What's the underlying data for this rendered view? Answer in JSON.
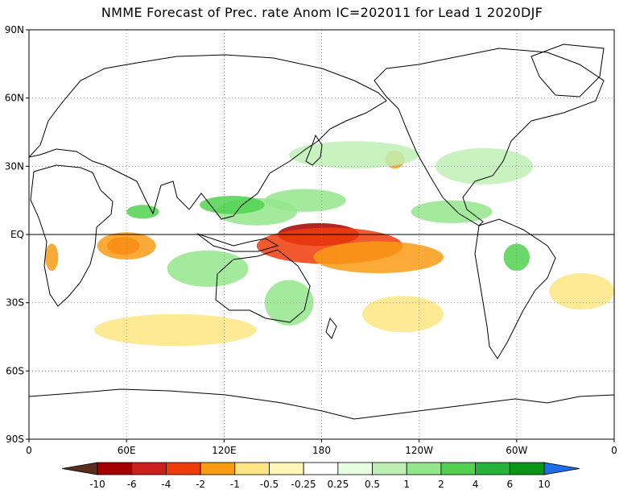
{
  "title": "NMME Forecast of Prec. rate Anom IC=202011 for Lead 1 2020DJF",
  "lat_labels": [
    "90N",
    "60N",
    "30N",
    "EQ",
    "30S",
    "60S",
    "90S"
  ],
  "lon_labels": [
    "0",
    "60E",
    "120E",
    "180",
    "120W",
    "60W",
    "0"
  ],
  "colorbar": {
    "colors": [
      "#5a2d1e",
      "#a50000",
      "#cd1e1e",
      "#f03c0a",
      "#fa9b14",
      "#fee682",
      "#fff5b4",
      "#ffffff",
      "#e6ffe1",
      "#bef0b4",
      "#94e68c",
      "#50d250",
      "#25b43a",
      "#0a9614",
      "#1e6ee6"
    ],
    "labels": [
      "-10",
      "-6",
      "-4",
      "-2",
      "-1",
      "-0.5",
      "-0.25",
      "0.25",
      "0.5",
      "1",
      "2",
      "4",
      "6",
      "10"
    ]
  },
  "anomalies": [
    {
      "color": "#a50000",
      "lon": 178,
      "lat": 0,
      "rlon": 25,
      "rlat": 5
    },
    {
      "color": "#f03c0a",
      "lon": 185,
      "lat": -5,
      "rlon": 45,
      "rlat": 8
    },
    {
      "color": "#fa9b14",
      "lon": 215,
      "lat": -10,
      "rlon": 40,
      "rlat": 7
    },
    {
      "color": "#f03c0a",
      "lon": 58,
      "lat": -5,
      "rlon": 10,
      "rlat": 4
    },
    {
      "color": "#fa9b14",
      "lon": 60,
      "lat": -5,
      "rlon": 18,
      "rlat": 6
    },
    {
      "color": "#fa9b14",
      "lon": 225,
      "lat": 33,
      "rlon": 6,
      "rlat": 4
    },
    {
      "color": "#fa9b14",
      "lon": 14,
      "lat": -10,
      "rlon": 4,
      "rlat": 6
    },
    {
      "color": "#94e68c",
      "lon": 140,
      "lat": 10,
      "rlon": 25,
      "rlat": 6
    },
    {
      "color": "#50d250",
      "lon": 125,
      "lat": 13,
      "rlon": 20,
      "rlat": 4
    },
    {
      "color": "#94e68c",
      "lon": 170,
      "lat": 15,
      "rlon": 25,
      "rlat": 5
    },
    {
      "color": "#94e68c",
      "lon": 110,
      "lat": -15,
      "rlon": 25,
      "rlat": 8
    },
    {
      "color": "#50d250",
      "lon": 70,
      "lat": 10,
      "rlon": 10,
      "rlat": 3
    },
    {
      "color": "#94e68c",
      "lon": 160,
      "lat": -30,
      "rlon": 15,
      "rlat": 10
    },
    {
      "color": "#94e68c",
      "lon": 260,
      "lat": 10,
      "rlon": 25,
      "rlat": 5
    },
    {
      "color": "#50d250",
      "lon": 300,
      "lat": -10,
      "rlon": 8,
      "rlat": 6
    },
    {
      "color": "#bef0b4",
      "lon": 280,
      "lat": 30,
      "rlon": 30,
      "rlat": 8
    },
    {
      "color": "#bef0b4",
      "lon": 200,
      "lat": 35,
      "rlon": 40,
      "rlat": 6
    },
    {
      "color": "#fee682",
      "lon": 90,
      "lat": -42,
      "rlon": 50,
      "rlat": 7
    },
    {
      "color": "#fee682",
      "lon": 230,
      "lat": -35,
      "rlon": 25,
      "rlat": 8
    },
    {
      "color": "#fee682",
      "lon": 340,
      "lat": -25,
      "rlon": 20,
      "rlat": 8
    }
  ]
}
